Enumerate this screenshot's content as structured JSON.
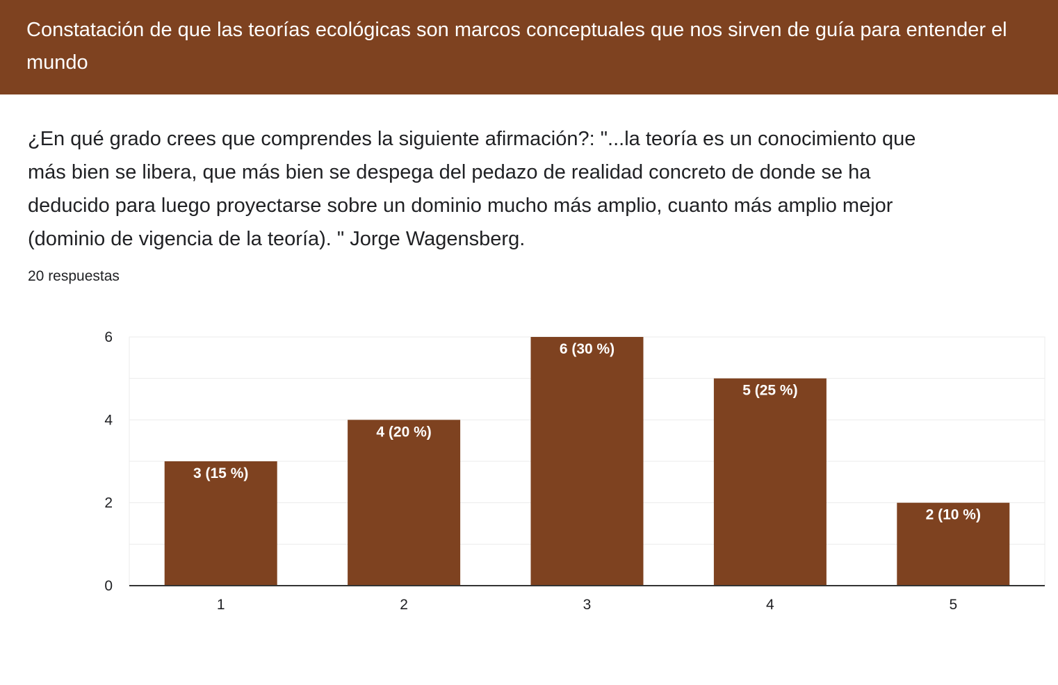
{
  "section": {
    "title": "Constatación de que las teorías ecológicas son marcos conceptuales que nos sirven de guía para entender el mundo"
  },
  "question": {
    "title": "¿En qué grado crees que comprendes la siguiente afirmación?: \"...la teoría es un conocimiento que más bien se libera, que más bien se despega del pedazo de realidad concreto de donde se ha deducido para luego proyectarse sobre un dominio mucho más amplio, cuanto más amplio mejor (dominio de vigencia de la teoría). \" Jorge Wagensberg.",
    "responses": "20 respuestas"
  },
  "colors": {
    "header_bg": "#7e4220",
    "bar": "#7e4220",
    "grid": "#ebebeb",
    "axis": "#333333"
  },
  "chart_data": {
    "type": "bar",
    "categories": [
      "1",
      "2",
      "3",
      "4",
      "5"
    ],
    "values": [
      3,
      4,
      6,
      5,
      2
    ],
    "data_labels": [
      "3 (15 %)",
      "4 (20 %)",
      "6 (30 %)",
      "5 (25 %)",
      "2 (10 %)"
    ],
    "yticks": [
      0,
      2,
      4,
      6
    ],
    "ylim": [
      0,
      6
    ],
    "grid": true,
    "title": "",
    "xlabel": "",
    "ylabel": ""
  }
}
